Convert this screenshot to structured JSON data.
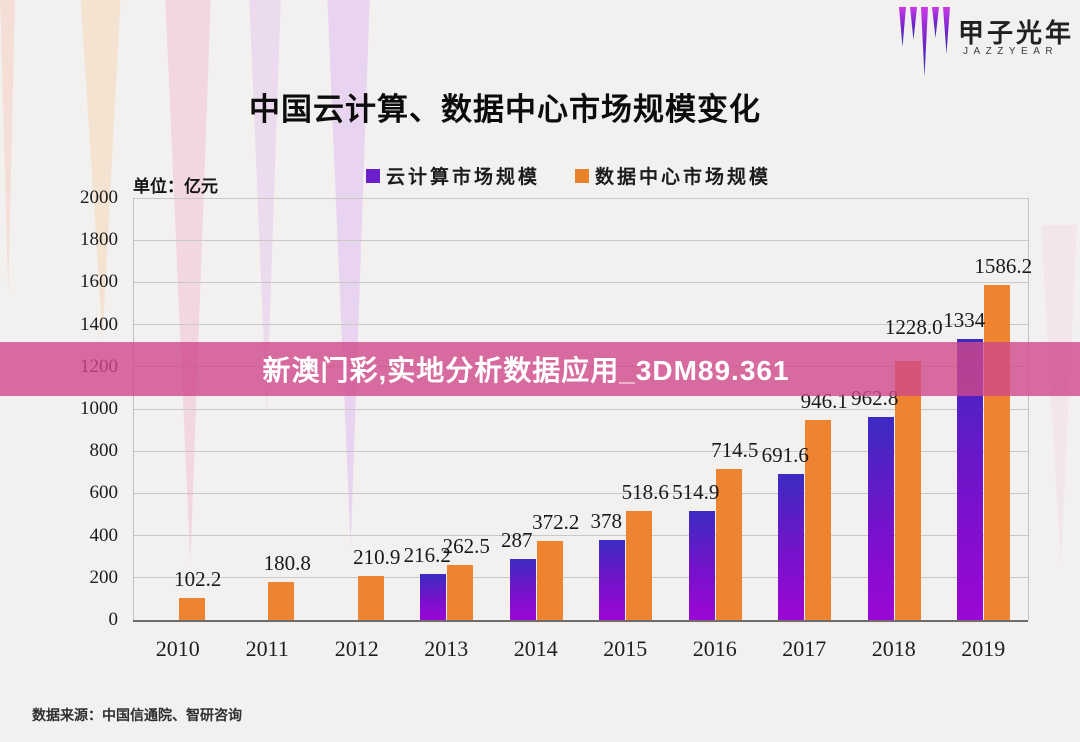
{
  "header": {
    "title": "中国云计算、数据中心市场规模变化",
    "logo": {
      "name": "甲子光年",
      "latin": "JAZZYEAR"
    }
  },
  "legend": [
    {
      "label": "云计算市场规模",
      "color": "#6a1fc8"
    },
    {
      "label": "数据中心市场规模",
      "color": "#e8802c"
    }
  ],
  "unit_label": "单位：亿元",
  "overlay_banner": {
    "text": "新澳门彩,实地分析数据应用_3DM89.361",
    "color": "#cf488a"
  },
  "source": "数据来源：中国信通院、智研咨询",
  "chart_data": {
    "type": "bar",
    "title": "中国云计算、数据中心市场规模变化",
    "categories": [
      "2010",
      "2011",
      "2012",
      "2013",
      "2014",
      "2015",
      "2016",
      "2017",
      "2018",
      "2019"
    ],
    "series": [
      {
        "name": "云计算市场规模",
        "color_top": "#3b2bc1",
        "color_mid": "#7612cb",
        "color_bottom": "#9c07d4",
        "values": [
          null,
          null,
          null,
          216.2,
          287,
          378,
          514.9,
          691.6,
          962.8,
          1334
        ],
        "labels": [
          "",
          "",
          "",
          "216.2",
          "287",
          "378",
          "514.9",
          "691.6",
          "962.8",
          "1334"
        ]
      },
      {
        "name": "数据中心市场规模",
        "color": "#ee8430",
        "values": [
          102.2,
          180.8,
          210.9,
          262.5,
          372.2,
          518.6,
          714.5,
          946.1,
          1228.0,
          1586.2
        ],
        "labels": [
          "102.2",
          "180.8",
          "210.9",
          "262.5",
          "372.2",
          "518.6",
          "714.5",
          "946.1",
          "1228.0",
          "1586.2"
        ]
      }
    ],
    "xlabel": "",
    "ylabel": "亿元",
    "ylim": [
      0,
      2000
    ],
    "ytick_step": 200,
    "grid": true,
    "legend_position": "top"
  }
}
